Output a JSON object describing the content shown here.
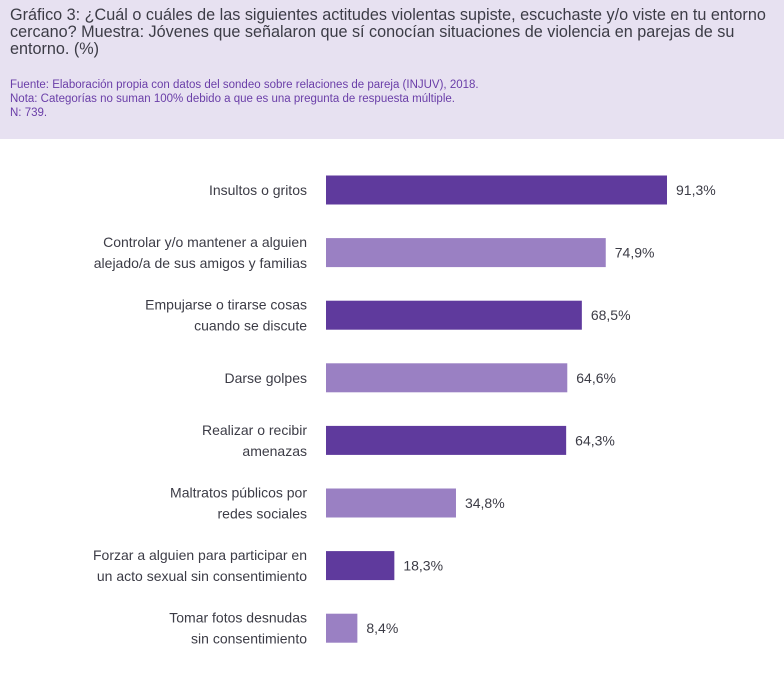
{
  "header": {
    "title": "Gráfico 3: ¿Cuál o cuáles de las siguientes actitudes violentas supiste, escuchaste y/o viste en tu entorno cercano? Muestra: Jóvenes que señalaron que sí conocían situaciones de violencia en parejas de su entorno. (%)",
    "source": "Fuente: Elaboración propia con datos del sondeo sobre relaciones de pareja (INJUV), 2018.",
    "note": "Nota: Categorías no suman 100% debido a que es una pregunta de respuesta múltiple.",
    "n": "N: 739."
  },
  "colors": {
    "dark": "#5f3a9d",
    "light": "#9a80c3",
    "header_bg": "#e7e1f1"
  },
  "chart_data": {
    "type": "bar",
    "orientation": "horizontal",
    "title": "Gráfico 3: ¿Cuál o cuáles de las siguientes actitudes violentas supiste, escuchaste y/o viste en tu entorno cercano? Muestra: Jóvenes que señalaron que sí conocían situaciones de violencia en parejas de su entorno. (%)",
    "xlabel": "",
    "ylabel": "",
    "xlim": [
      0,
      100
    ],
    "unit": "%",
    "categories": [
      [
        "Insultos o gritos"
      ],
      [
        "Controlar y/o mantener a alguien",
        "alejado/a de sus amigos y familias"
      ],
      [
        "Empujarse o tirarse cosas",
        "cuando se discute"
      ],
      [
        "Darse golpes"
      ],
      [
        "Realizar o recibir",
        "amenazas"
      ],
      [
        "Maltratos públicos por",
        "redes sociales"
      ],
      [
        "Forzar a alguien para participar en",
        "un acto sexual sin consentimiento"
      ],
      [
        "Tomar fotos desnudas",
        "sin consentimiento"
      ]
    ],
    "values": [
      91.3,
      74.9,
      68.5,
      64.6,
      64.3,
      34.8,
      18.3,
      8.4
    ],
    "value_labels": [
      "91,3%",
      "74,9%",
      "68,5%",
      "64,6%",
      "64,3%",
      "34,8%",
      "18,3%",
      "8,4%"
    ],
    "bar_shades": [
      "dark",
      "light",
      "dark",
      "light",
      "dark",
      "light",
      "dark",
      "light"
    ],
    "grid": false,
    "legend": "none"
  }
}
